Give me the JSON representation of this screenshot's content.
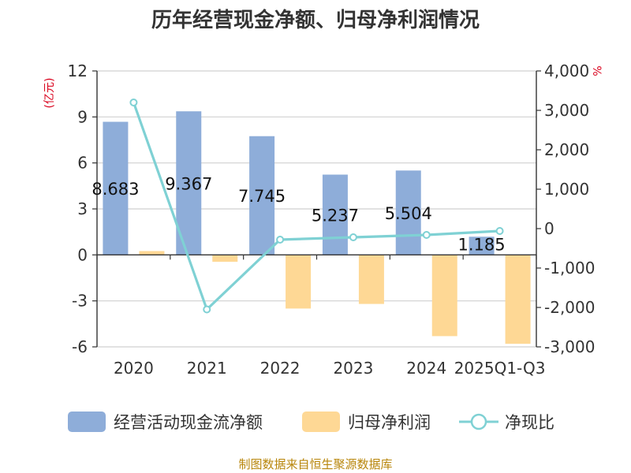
{
  "chart_data": {
    "type": "bar",
    "title": "历年经营现金净额、归母净利润情况",
    "categories": [
      "2020",
      "2021",
      "2022",
      "2023",
      "2024",
      "2025Q1-Q3"
    ],
    "series": [
      {
        "name": "经营活动现金流净额",
        "type": "bar",
        "axis": "left",
        "color": "#8eadd9",
        "values": [
          8.683,
          9.367,
          7.745,
          5.237,
          5.504,
          1.185
        ],
        "labels": [
          "8.683",
          "9.367",
          "7.745",
          "5.237",
          "5.504",
          "1.185"
        ]
      },
      {
        "name": "归母净利润",
        "type": "bar",
        "axis": "left",
        "color": "#fed895",
        "values": [
          0.25,
          -0.45,
          -3.5,
          -3.2,
          -5.3,
          -5.8
        ]
      },
      {
        "name": "净现比",
        "type": "line",
        "axis": "right",
        "color": "#7fd1d4",
        "values": [
          3200,
          -2050,
          -280,
          -220,
          -160,
          -60
        ]
      }
    ],
    "left_axis": {
      "unit": "(亿元)",
      "min": -6,
      "max": 12,
      "ticks": [
        12,
        9,
        6,
        3,
        0,
        -3,
        -6
      ],
      "tick_labels": [
        "12",
        "9",
        "6",
        "3",
        "0",
        "-3",
        "-6"
      ]
    },
    "right_axis": {
      "unit": "%",
      "min": -3000,
      "max": 4000,
      "ticks": [
        4000,
        3000,
        2000,
        1000,
        0,
        -1000,
        -2000,
        -3000
      ],
      "tick_labels": [
        "4,000",
        "3,000",
        "2,000",
        "1,000",
        "0",
        "-1,000",
        "-2,000",
        "-3,000"
      ]
    },
    "grid": true,
    "legend_position": "bottom",
    "source": "制图数据来自恒生聚源数据库"
  }
}
